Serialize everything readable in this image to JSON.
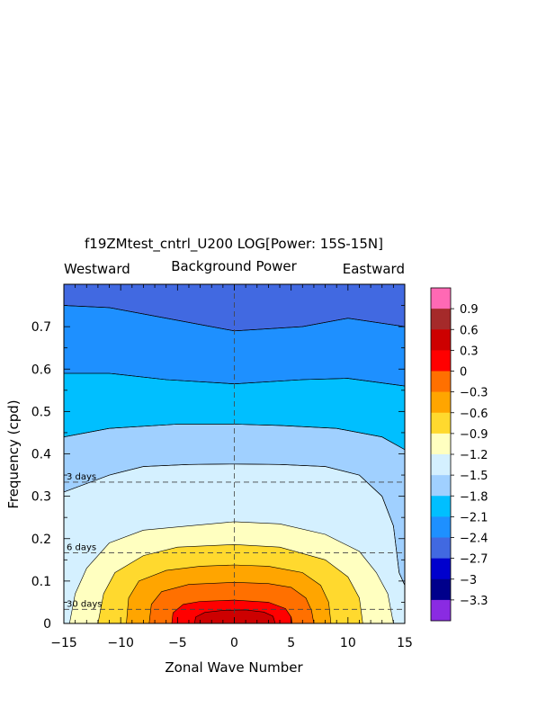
{
  "chart_data": {
    "type": "contour",
    "title": "f19ZMtest_cntrl_U200 LOG[Power: 15S-15N]",
    "subtitle": "Background Power",
    "left_label": "Westward",
    "right_label": "Eastward",
    "xlabel": "Zonal Wave Number",
    "ylabel": "Frequency (cpd)",
    "xlim": [
      -15,
      15
    ],
    "ylim": [
      0,
      0.8
    ],
    "x_ticks": [
      -15,
      -10,
      -5,
      0,
      5,
      10,
      15
    ],
    "x_tick_labels": [
      "−15",
      "−10",
      "−5",
      "0",
      "5",
      "10",
      "15"
    ],
    "y_ticks": [
      0,
      0.1,
      0.2,
      0.3,
      0.4,
      0.5,
      0.6,
      0.7
    ],
    "y_tick_labels": [
      "0",
      "0.1",
      "0.2",
      "0.3",
      "0.4",
      "0.5",
      "0.6",
      "0.7"
    ],
    "period_lines": [
      {
        "label": "3 days",
        "frequency": 0.3333
      },
      {
        "label": "6 days",
        "frequency": 0.1667
      },
      {
        "label": "30 days",
        "frequency": 0.0333
      }
    ],
    "colorbar": {
      "labels": [
        "0.9",
        "0.6",
        "0.3",
        "0",
        "−0.3",
        "−0.6",
        "−0.9",
        "−1.2",
        "−1.5",
        "−1.8",
        "−2.1",
        "−2.4",
        "−2.7",
        "−3",
        "−3.3"
      ],
      "levels": [
        0.9,
        0.6,
        0.3,
        0,
        -0.3,
        -0.6,
        -0.9,
        -1.2,
        -1.5,
        -1.8,
        -2.1,
        -2.4,
        -2.7,
        -3.0,
        -3.3
      ],
      "colors": [
        "#ff69b4",
        "#a52a2a",
        "#cd0000",
        "#ff0000",
        "#ff7000",
        "#ffa500",
        "#ffd92e",
        "#ffffc0",
        "#d4f0ff",
        "#a0d0ff",
        "#00bfff",
        "#1e90ff",
        "#4169e1",
        "#0000cd",
        "#00008b",
        "#8a2be2"
      ]
    },
    "contour_fill": [
      {
        "level": -2.4,
        "color": "#4169e1",
        "points": [
          [
            -15,
            0.8
          ],
          [
            15,
            0.8
          ],
          [
            15,
            0.7
          ],
          [
            10,
            0.72
          ],
          [
            6,
            0.7
          ],
          [
            0,
            0.69
          ],
          [
            -6,
            0.72
          ],
          [
            -11,
            0.745
          ],
          [
            -15,
            0.75
          ]
        ]
      },
      {
        "level": -2.1,
        "color": "#1e90ff",
        "points": [
          [
            -15,
            0.75
          ],
          [
            -11,
            0.745
          ],
          [
            -6,
            0.72
          ],
          [
            0,
            0.69
          ],
          [
            6,
            0.7
          ],
          [
            10,
            0.72
          ],
          [
            15,
            0.7
          ],
          [
            15,
            0.56
          ],
          [
            10,
            0.578
          ],
          [
            6,
            0.575
          ],
          [
            0,
            0.565
          ],
          [
            -6,
            0.575
          ],
          [
            -11,
            0.59
          ],
          [
            -15,
            0.59
          ]
        ]
      },
      {
        "level": -1.8,
        "color": "#00bfff",
        "points": [
          [
            -15,
            0.59
          ],
          [
            -11,
            0.59
          ],
          [
            -6,
            0.575
          ],
          [
            0,
            0.565
          ],
          [
            6,
            0.575
          ],
          [
            10,
            0.578
          ],
          [
            15,
            0.56
          ],
          [
            15,
            0.41
          ],
          [
            13,
            0.44
          ],
          [
            9,
            0.46
          ],
          [
            4,
            0.467
          ],
          [
            0,
            0.47
          ],
          [
            -5,
            0.47
          ],
          [
            -11,
            0.46
          ],
          [
            -15,
            0.44
          ]
        ]
      },
      {
        "level": -1.5,
        "color": "#a0d0ff",
        "points": [
          [
            -15,
            0.44
          ],
          [
            -11,
            0.46
          ],
          [
            -5,
            0.47
          ],
          [
            0,
            0.47
          ],
          [
            4,
            0.467
          ],
          [
            9,
            0.46
          ],
          [
            13,
            0.44
          ],
          [
            15,
            0.41
          ],
          [
            15,
            0.09
          ],
          [
            14.5,
            0.12
          ],
          [
            14,
            0.23
          ],
          [
            13,
            0.3
          ],
          [
            11,
            0.35
          ],
          [
            8,
            0.37
          ],
          [
            4,
            0.375
          ],
          [
            0,
            0.376
          ],
          [
            -4,
            0.375
          ],
          [
            -8,
            0.37
          ],
          [
            -11,
            0.35
          ],
          [
            -13,
            0.33
          ],
          [
            -15,
            0.31
          ]
        ]
      },
      {
        "level": -1.2,
        "color": "#d4f0ff",
        "points": [
          [
            -15,
            0.31
          ],
          [
            -13,
            0.33
          ],
          [
            -11,
            0.35
          ],
          [
            -8,
            0.37
          ],
          [
            -4,
            0.375
          ],
          [
            0,
            0.376
          ],
          [
            4,
            0.375
          ],
          [
            8,
            0.37
          ],
          [
            11,
            0.35
          ],
          [
            13,
            0.3
          ],
          [
            14,
            0.23
          ],
          [
            14.5,
            0.12
          ],
          [
            15,
            0.09
          ],
          [
            15,
            0
          ],
          [
            -15,
            0
          ]
        ]
      },
      {
        "level": -0.9,
        "color": "#ffffc0",
        "points": [
          [
            -14.5,
            0
          ],
          [
            -14,
            0.07
          ],
          [
            -13,
            0.13
          ],
          [
            -11,
            0.19
          ],
          [
            -8,
            0.22
          ],
          [
            -4,
            0.23
          ],
          [
            0,
            0.24
          ],
          [
            4,
            0.235
          ],
          [
            8,
            0.21
          ],
          [
            11,
            0.17
          ],
          [
            12.5,
            0.12
          ],
          [
            13.5,
            0.07
          ],
          [
            14,
            0
          ]
        ]
      },
      {
        "level": -0.6,
        "color": "#ffd92e",
        "points": [
          [
            -12,
            0
          ],
          [
            -11.5,
            0.07
          ],
          [
            -10.5,
            0.12
          ],
          [
            -8,
            0.16
          ],
          [
            -5,
            0.18
          ],
          [
            0,
            0.186
          ],
          [
            4,
            0.18
          ],
          [
            8,
            0.15
          ],
          [
            10,
            0.11
          ],
          [
            11,
            0.06
          ],
          [
            11.3,
            0
          ]
        ]
      },
      {
        "level": -0.3,
        "color": "#ffa500",
        "points": [
          [
            -9.5,
            0
          ],
          [
            -9.3,
            0.06
          ],
          [
            -8.4,
            0.1
          ],
          [
            -6,
            0.125
          ],
          [
            -3,
            0.135
          ],
          [
            0,
            0.138
          ],
          [
            3,
            0.135
          ],
          [
            6,
            0.12
          ],
          [
            7.6,
            0.09
          ],
          [
            8.3,
            0.05
          ],
          [
            8.5,
            0
          ]
        ]
      },
      {
        "level": 0,
        "color": "#ff7000",
        "points": [
          [
            -7.5,
            0
          ],
          [
            -7.3,
            0.045
          ],
          [
            -6.4,
            0.075
          ],
          [
            -4,
            0.092
          ],
          [
            0,
            0.097
          ],
          [
            3,
            0.094
          ],
          [
            5,
            0.085
          ],
          [
            6.3,
            0.06
          ],
          [
            6.8,
            0.03
          ],
          [
            7,
            0
          ]
        ]
      },
      {
        "level": 0.3,
        "color": "#ff0000",
        "points": [
          [
            -5.5,
            0
          ],
          [
            -5.4,
            0.025
          ],
          [
            -4.5,
            0.045
          ],
          [
            -3,
            0.052
          ],
          [
            0,
            0.055
          ],
          [
            3,
            0.05
          ],
          [
            4.5,
            0.035
          ],
          [
            5,
            0.015
          ],
          [
            5.1,
            0
          ]
        ]
      },
      {
        "level": 0.6,
        "color": "#cd0000",
        "points": [
          [
            -3.5,
            0
          ],
          [
            -3.4,
            0.015
          ],
          [
            -2.6,
            0.026
          ],
          [
            -1,
            0.031
          ],
          [
            1,
            0.032
          ],
          [
            2.6,
            0.027
          ],
          [
            3.4,
            0.017
          ],
          [
            3.6,
            0
          ]
        ]
      }
    ]
  }
}
